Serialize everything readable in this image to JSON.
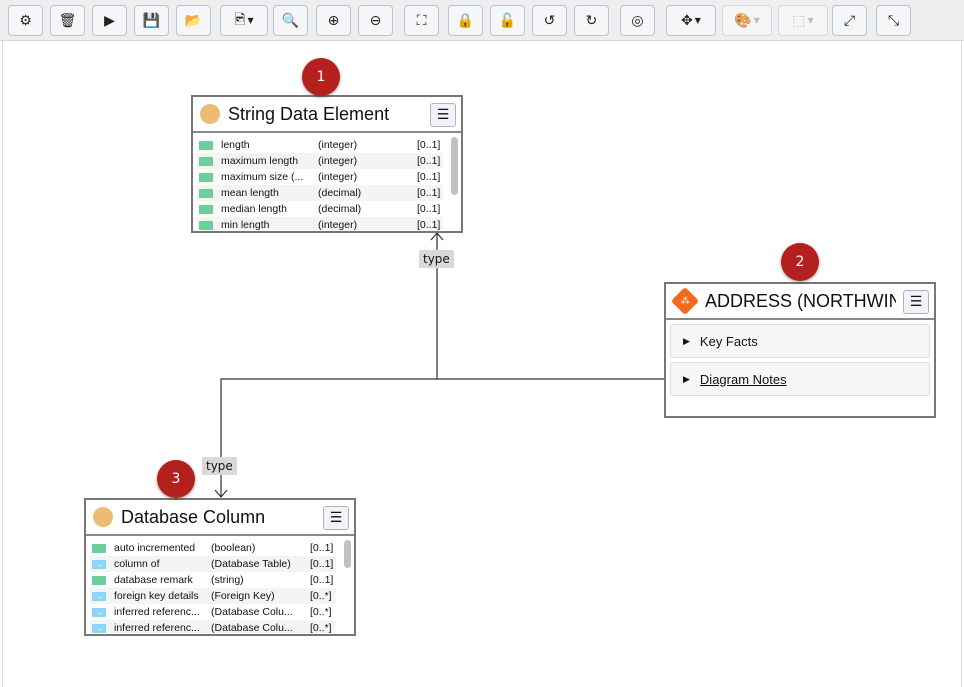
{
  "toolbar": {
    "buttons": [
      {
        "name": "settings",
        "icon": "gear-icon",
        "glyph": "⚙",
        "enabled": true
      },
      {
        "name": "delete",
        "icon": "trash-icon",
        "glyph": "🗑",
        "enabled": true
      },
      {
        "name": "run",
        "icon": "play-icon",
        "glyph": "▶",
        "enabled": true
      },
      {
        "name": "save",
        "icon": "save-icon",
        "glyph": "💾",
        "enabled": true
      },
      {
        "name": "open",
        "icon": "folder-open-icon",
        "glyph": "📂",
        "enabled": true
      },
      {
        "name": "export-image",
        "icon": "image-file-icon",
        "glyph": "🖻",
        "enabled": true,
        "dropdown": true
      },
      {
        "name": "search",
        "icon": "search-icon",
        "glyph": "🔍",
        "enabled": true
      },
      {
        "name": "zoom-in",
        "icon": "zoom-in-icon",
        "glyph": "⊕",
        "enabled": true
      },
      {
        "name": "zoom-out",
        "icon": "zoom-out-icon",
        "glyph": "⊖",
        "enabled": true
      },
      {
        "name": "fit",
        "icon": "fit-screen-icon",
        "glyph": "⛶",
        "enabled": true
      },
      {
        "name": "lock",
        "icon": "lock-icon",
        "glyph": "🔒",
        "enabled": true
      },
      {
        "name": "unlock",
        "icon": "unlock-icon",
        "glyph": "🔓",
        "enabled": true
      },
      {
        "name": "undo",
        "icon": "undo-icon",
        "glyph": "↺",
        "enabled": true
      },
      {
        "name": "redo",
        "icon": "redo-icon",
        "glyph": "↻",
        "enabled": true
      },
      {
        "name": "hide",
        "icon": "eye-slash-icon",
        "glyph": "◎",
        "enabled": true
      },
      {
        "name": "layout",
        "icon": "move-arrows-icon",
        "glyph": "✥",
        "enabled": true,
        "dropdown": true
      },
      {
        "name": "color",
        "icon": "palette-icon",
        "glyph": "🎨",
        "enabled": false,
        "dropdown": true
      },
      {
        "name": "border",
        "icon": "border-style-icon",
        "glyph": "⬚",
        "enabled": false,
        "dropdown": true
      },
      {
        "name": "expand",
        "icon": "expand-icon",
        "glyph": "⤢",
        "enabled": true
      },
      {
        "name": "collapse",
        "icon": "compress-icon",
        "glyph": "⤡",
        "enabled": true
      }
    ]
  },
  "edges": [
    {
      "label": "type"
    },
    {
      "label": "type"
    }
  ],
  "nodes": {
    "string_data_element": {
      "badge": "1",
      "title": "String Data Element",
      "icon_color": "#ebbc72",
      "rows": [
        {
          "kind": "attr",
          "name": "length",
          "type": "(integer)",
          "card": "[0..1]"
        },
        {
          "kind": "attr",
          "name": "maximum length",
          "type": "(integer)",
          "card": "[0..1]"
        },
        {
          "kind": "attr",
          "name": "maximum size (...",
          "type": "(integer)",
          "card": "[0..1]"
        },
        {
          "kind": "attr",
          "name": "mean length",
          "type": "(decimal)",
          "card": "[0..1]"
        },
        {
          "kind": "attr",
          "name": "median length",
          "type": "(decimal)",
          "card": "[0..1]"
        },
        {
          "kind": "attr",
          "name": "min length",
          "type": "(integer)",
          "card": "[0..1]"
        }
      ]
    },
    "address": {
      "badge": "2",
      "title": "ADDRESS (NORTHWIN...",
      "icon_color": "#f26a1e",
      "sections": [
        "Key Facts",
        "Diagram Notes"
      ]
    },
    "database_column": {
      "badge": "3",
      "title": "Database Column",
      "icon_color": "#ebbc72",
      "rows": [
        {
          "kind": "attr",
          "name": "auto incremented",
          "type": "(boolean)",
          "card": "[0..1]"
        },
        {
          "kind": "ref",
          "name": "column of",
          "type": "(Database Table)",
          "card": "[0..1]"
        },
        {
          "kind": "attr",
          "name": "database remark",
          "type": "(string)",
          "card": "[0..1]"
        },
        {
          "kind": "ref",
          "name": "foreign key details",
          "type": "(Foreign Key)",
          "card": "[0..*]"
        },
        {
          "kind": "ref",
          "name": "inferred referenc...",
          "type": "(Database Colu...",
          "card": "[0..*]"
        },
        {
          "kind": "ref",
          "name": "inferred referenc...",
          "type": "(Database Colu...",
          "card": "[0..*]"
        }
      ]
    }
  }
}
